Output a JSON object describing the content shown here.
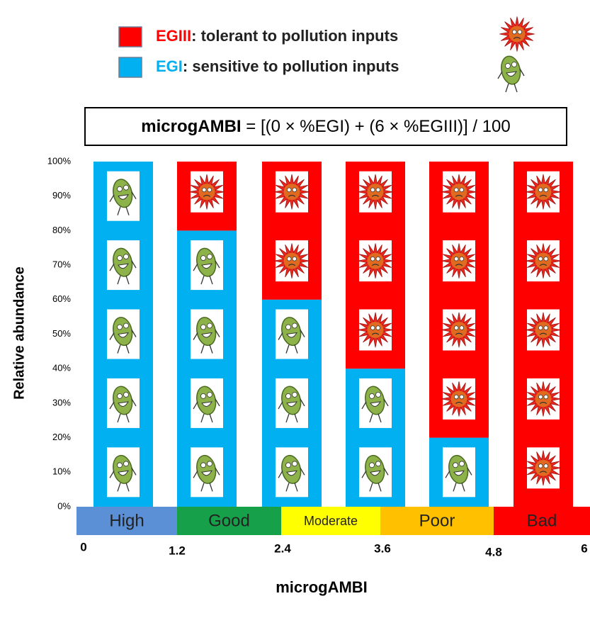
{
  "chart_data": {
    "type": "stacked-bar",
    "formula_term": "microgAMBI",
    "formula_rest": " = [(0 × %EGI) + (6 × %EGIII)] / 100",
    "y_label": "Relative abundance",
    "x_label": "microgAMBI",
    "series": [
      {
        "name": "EGI",
        "description": ": sensitive to pollution inputs",
        "color": "#00b0f0",
        "values": [
          100,
          80,
          60,
          40,
          20,
          0
        ]
      },
      {
        "name": "EGIII",
        "description": ": tolerant to pollution inputs",
        "color": "#ff0000",
        "values": [
          0,
          20,
          40,
          60,
          80,
          100
        ]
      }
    ],
    "ylim": [
      0,
      100
    ],
    "yticks": [
      {
        "value": 0,
        "label": "0%"
      },
      {
        "value": 10,
        "label": "10%"
      },
      {
        "value": 20,
        "label": "20%"
      },
      {
        "value": 30,
        "label": "30%"
      },
      {
        "value": 40,
        "label": "40%"
      },
      {
        "value": 50,
        "label": "50%"
      },
      {
        "value": 60,
        "label": "60%"
      },
      {
        "value": 70,
        "label": "70%"
      },
      {
        "value": 80,
        "label": "80%"
      },
      {
        "value": 90,
        "label": "90%"
      },
      {
        "value": 100,
        "label": "100%"
      }
    ],
    "xticks": [
      0,
      1.2,
      2.4,
      3.6,
      4.8,
      6
    ],
    "status_classes": [
      {
        "label": "High",
        "color": "#5b8fd6"
      },
      {
        "label": "Good",
        "color": "#17a04a"
      },
      {
        "label": "Moderate",
        "color": "#ffff00"
      },
      {
        "label": "Poor",
        "color": "#ffc000"
      },
      {
        "label": "Bad",
        "color": "#ff0000"
      }
    ]
  }
}
